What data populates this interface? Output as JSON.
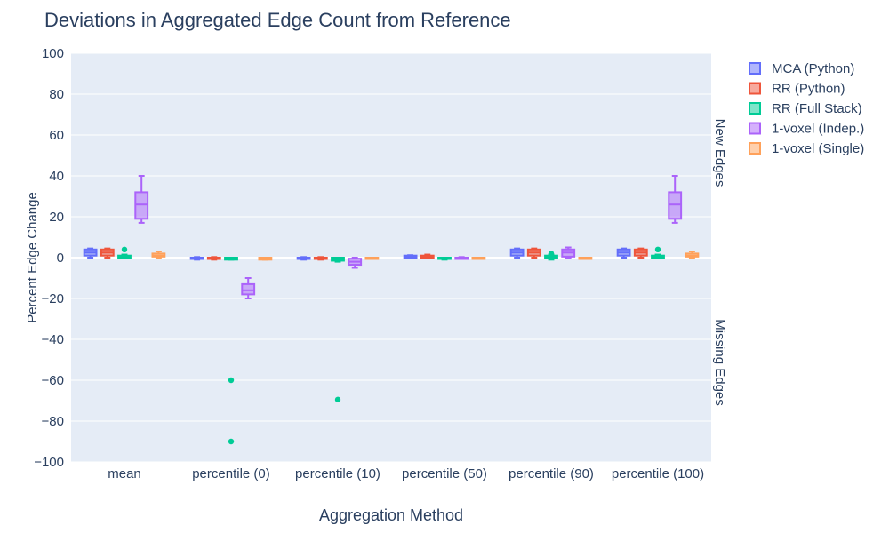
{
  "chart_data": {
    "type": "box",
    "title": "Deviations in Aggregated Edge Count from Reference",
    "xlabel": "Aggregation Method",
    "ylabel": "Percent Edge Change",
    "ylim": [
      -100,
      100
    ],
    "yticks": [
      100,
      80,
      60,
      40,
      20,
      0,
      -20,
      -40,
      -60,
      -80,
      -100
    ],
    "categories": [
      "mean",
      "percentile (0)",
      "percentile (10)",
      "percentile (50)",
      "percentile (90)",
      "percentile (100)"
    ],
    "annotations": {
      "upper": "New Edges",
      "lower": "Missing Edges"
    },
    "legend_position": "top-right",
    "grid": true,
    "series": [
      {
        "name": "MCA (Python)",
        "color": "#636efa",
        "boxes": [
          {
            "min": 0,
            "q1": 1,
            "median": 2.5,
            "q3": 4,
            "max": 4.5,
            "outliers": []
          },
          {
            "min": -1,
            "q1": -0.5,
            "median": 0,
            "q3": 0,
            "max": 0.3,
            "outliers": []
          },
          {
            "min": -1,
            "q1": -0.5,
            "median": 0,
            "q3": 0,
            "max": 0.3,
            "outliers": []
          },
          {
            "min": 0,
            "q1": 0,
            "median": 0.5,
            "q3": 1,
            "max": 1.2,
            "outliers": []
          },
          {
            "min": 0,
            "q1": 1,
            "median": 2.5,
            "q3": 4,
            "max": 4.5,
            "outliers": []
          },
          {
            "min": 0,
            "q1": 1,
            "median": 2.5,
            "q3": 4,
            "max": 4.5,
            "outliers": []
          }
        ]
      },
      {
        "name": "RR (Python)",
        "color": "#ef553b",
        "boxes": [
          {
            "min": 0,
            "q1": 1,
            "median": 2.5,
            "q3": 4,
            "max": 4.5,
            "outliers": []
          },
          {
            "min": -1,
            "q1": -0.5,
            "median": 0,
            "q3": 0,
            "max": 0.3,
            "outliers": []
          },
          {
            "min": -1,
            "q1": -0.5,
            "median": 0,
            "q3": 0,
            "max": 0.3,
            "outliers": []
          },
          {
            "min": 0,
            "q1": 0,
            "median": 0.5,
            "q3": 1,
            "max": 1.5,
            "outliers": []
          },
          {
            "min": 0,
            "q1": 1,
            "median": 2.5,
            "q3": 4,
            "max": 4.5,
            "outliers": []
          },
          {
            "min": 0,
            "q1": 1,
            "median": 2.5,
            "q3": 4,
            "max": 4.5,
            "outliers": []
          }
        ]
      },
      {
        "name": "RR (Full Stack)",
        "color": "#00cc96",
        "boxes": [
          {
            "min": 0,
            "q1": 0,
            "median": 0.5,
            "q3": 1,
            "max": 1.5,
            "outliers": [
              4
            ]
          },
          {
            "min": -1,
            "q1": -1,
            "median": -0.5,
            "q3": 0,
            "max": 0,
            "outliers": [
              -60,
              -90
            ]
          },
          {
            "min": -2,
            "q1": -1.5,
            "median": -1,
            "q3": 0,
            "max": 0,
            "outliers": [
              -69.5
            ]
          },
          {
            "min": -1,
            "q1": -0.5,
            "median": 0,
            "q3": 0,
            "max": 0,
            "outliers": []
          },
          {
            "min": -1,
            "q1": 0,
            "median": 0.5,
            "q3": 1,
            "max": 1.5,
            "outliers": [
              2
            ]
          },
          {
            "min": 0,
            "q1": 0,
            "median": 0.5,
            "q3": 1,
            "max": 1.5,
            "outliers": [
              4
            ]
          }
        ]
      },
      {
        "name": "1-voxel (Indep.)",
        "color": "#ab63fa",
        "boxes": [
          {
            "min": 17,
            "q1": 19,
            "median": 26,
            "q3": 32,
            "max": 40,
            "outliers": []
          },
          {
            "min": -20,
            "q1": -18,
            "median": -16,
            "q3": -13,
            "max": -10,
            "outliers": []
          },
          {
            "min": -5,
            "q1": -3.5,
            "median": -2,
            "q3": -0.5,
            "max": 0,
            "outliers": []
          },
          {
            "min": -0.3,
            "q1": 0,
            "median": 0,
            "q3": 0,
            "max": 0.3,
            "outliers": []
          },
          {
            "min": 0,
            "q1": 0.5,
            "median": 2.5,
            "q3": 4,
            "max": 5,
            "outliers": []
          },
          {
            "min": 17,
            "q1": 19,
            "median": 26,
            "q3": 32,
            "max": 40,
            "outliers": []
          }
        ]
      },
      {
        "name": "1-voxel (Single)",
        "color": "#ffa15a",
        "boxes": [
          {
            "min": 0,
            "q1": 0.5,
            "median": 1,
            "q3": 2,
            "max": 3,
            "outliers": []
          },
          {
            "min": -1,
            "q1": -1,
            "median": -0.5,
            "q3": 0,
            "max": 0,
            "outliers": []
          },
          {
            "min": 0,
            "q1": 0,
            "median": 0,
            "q3": 0,
            "max": 0,
            "outliers": []
          },
          {
            "min": 0,
            "q1": 0,
            "median": 0,
            "q3": 0,
            "max": 0,
            "outliers": []
          },
          {
            "min": 0,
            "q1": 0,
            "median": 0,
            "q3": 0,
            "max": 0,
            "outliers": []
          },
          {
            "min": 0,
            "q1": 0.5,
            "median": 1,
            "q3": 2,
            "max": 3,
            "outliers": []
          }
        ]
      }
    ]
  }
}
